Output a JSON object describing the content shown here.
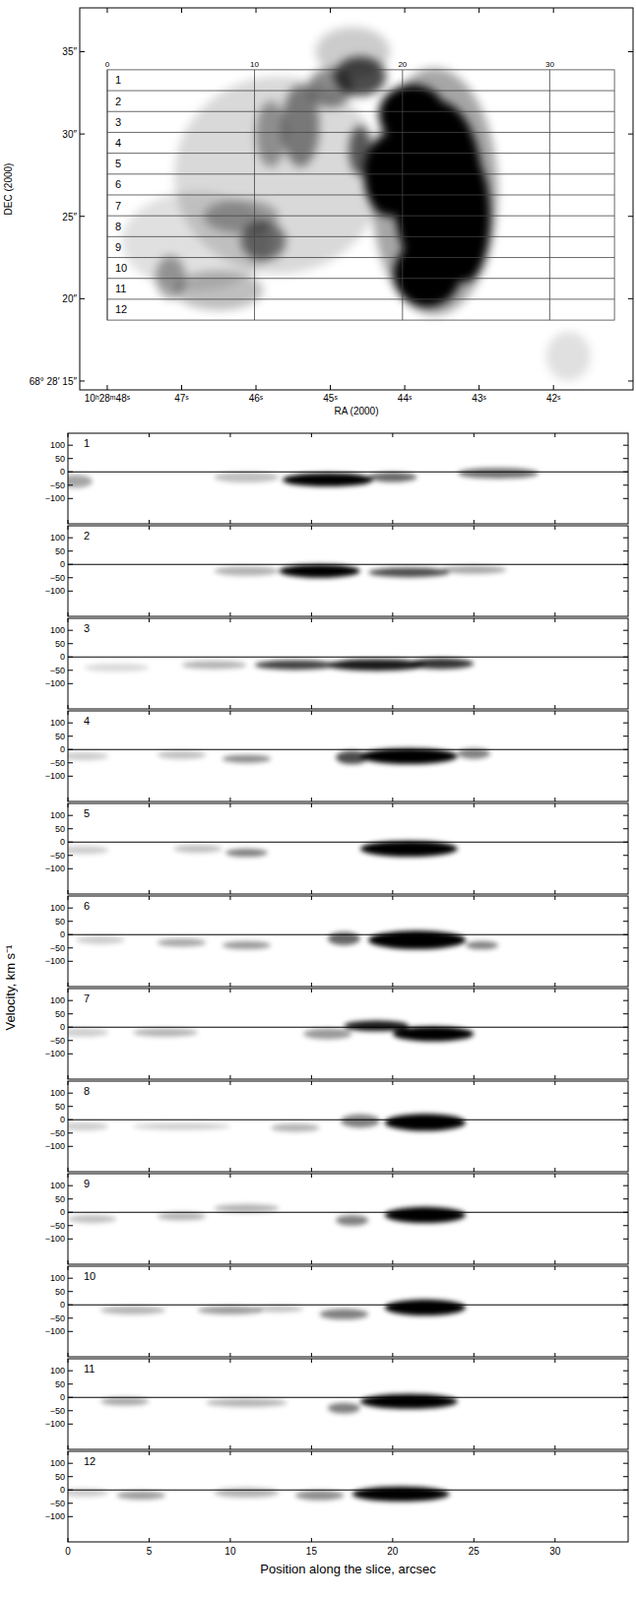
{
  "chart_data": [
    {
      "type": "image",
      "xlabel": "RA (2000)",
      "ylabel": "DEC (2000)",
      "xlim": [
        48.37,
        40.93
      ],
      "ylim": [
        14.46,
        37.66
      ],
      "xticks": [
        {
          "value": 48,
          "label": "10ʰ28ᵐ48ˢ"
        },
        {
          "value": 47,
          "label": "47ˢ"
        },
        {
          "value": 46,
          "label": "46ˢ"
        },
        {
          "value": 45,
          "label": "45ˢ"
        },
        {
          "value": 44,
          "label": "44ˢ"
        },
        {
          "value": 43,
          "label": "43ˢ"
        },
        {
          "value": 42,
          "label": "42ˢ"
        }
      ],
      "yticks": [
        {
          "value": 15,
          "label": "68° 28′ 15″"
        },
        {
          "value": 20,
          "label": "20″"
        },
        {
          "value": 25,
          "label": "25″"
        },
        {
          "value": 30,
          "label": "30″"
        },
        {
          "value": 35,
          "label": "35″"
        }
      ],
      "components": [
        {
          "ra": 45.7,
          "dec": 27.5,
          "sra": 1.4,
          "sdec": 6,
          "level": 0.15
        },
        {
          "ra": 46.8,
          "dec": 23.5,
          "sra": 1.0,
          "sdec": 3,
          "level": 0.12
        },
        {
          "ra": 43.6,
          "dec": 26.5,
          "sra": 0.85,
          "sdec": 7.5,
          "level": 0.35
        },
        {
          "ra": 43.55,
          "dec": 26.5,
          "sra": 0.6,
          "sdec": 5.5,
          "level": 1
        },
        {
          "ra": 43.9,
          "dec": 31.2,
          "sra": 0.45,
          "sdec": 1.8,
          "level": 1
        },
        {
          "ra": 44.2,
          "dec": 27.5,
          "sra": 0.35,
          "sdec": 2.5,
          "level": 1
        },
        {
          "ra": 43.7,
          "dec": 21.5,
          "sra": 0.45,
          "sdec": 2,
          "level": 1
        },
        {
          "ra": 43.2,
          "dec": 25,
          "sra": 0.35,
          "sdec": 4,
          "level": 1
        },
        {
          "ra": 44.6,
          "dec": 33.5,
          "sra": 0.35,
          "sdec": 1.2,
          "level": 0.7
        },
        {
          "ra": 45.0,
          "dec": 32.8,
          "sra": 0.3,
          "sdec": 1.2,
          "level": 0.45
        },
        {
          "ra": 44.7,
          "dec": 35,
          "sra": 0.5,
          "sdec": 1.5,
          "level": 0.2
        },
        {
          "ra": 45.4,
          "dec": 30.5,
          "sra": 0.25,
          "sdec": 2.5,
          "level": 0.45
        },
        {
          "ra": 45.8,
          "dec": 30,
          "sra": 0.2,
          "sdec": 2,
          "level": 0.35
        },
        {
          "ra": 44.6,
          "dec": 29.0,
          "sra": 0.15,
          "sdec": 1.5,
          "level": 0.6
        },
        {
          "ra": 45.9,
          "dec": 23.5,
          "sra": 0.3,
          "sdec": 1.2,
          "level": 0.5
        },
        {
          "ra": 46.2,
          "dec": 25.0,
          "sra": 0.5,
          "sdec": 1.0,
          "level": 0.3
        },
        {
          "ra": 47.15,
          "dec": 21.3,
          "sra": 0.2,
          "sdec": 1.3,
          "level": 0.35
        },
        {
          "ra": 46.5,
          "dec": 20.5,
          "sra": 0.6,
          "sdec": 1.2,
          "level": 0.25
        },
        {
          "ra": 41.8,
          "dec": 16.5,
          "sra": 0.3,
          "sdec": 1.5,
          "level": 0.12
        }
      ],
      "slit_grid": {
        "ra_start": 48.0,
        "ra_end": 41.18,
        "dec_top": 33.9,
        "dec_bottom": 18.7,
        "slices": [
          1,
          2,
          3,
          4,
          5,
          6,
          7,
          8,
          9,
          10,
          11,
          12
        ],
        "scale": [
          {
            "value": 48.0,
            "label": "0"
          },
          {
            "value": 46.02,
            "label": "10"
          },
          {
            "value": 44.03,
            "label": "20"
          },
          {
            "value": 42.05,
            "label": "30"
          }
        ]
      }
    },
    {
      "type": "position-velocity",
      "xlabel": "Position along the slice, arcsec",
      "ylabel": "Velocity, km s⁻¹",
      "xlim": [
        0,
        34.5
      ],
      "ylim": [
        -195,
        145
      ],
      "xticks": [
        0,
        5,
        10,
        15,
        20,
        25,
        30
      ],
      "yticks": [
        100,
        50,
        0,
        {
          "value": -50,
          "label": "−50"
        },
        {
          "value": -100,
          "label": "−100"
        }
      ],
      "reference_lines": [
        0
      ],
      "panels": [
        {
          "title": "1",
          "components": [
            {
              "x": 16,
              "v": -30,
              "sx": 2.8,
              "sv": 25,
              "level": 1
            },
            {
              "x": 20,
              "v": -20,
              "sx": 1.5,
              "sv": 18,
              "level": 0.6
            },
            {
              "x": 26.5,
              "v": -5,
              "sx": 2.5,
              "sv": 20,
              "level": 0.55
            },
            {
              "x": 0.5,
              "v": -35,
              "sx": 1,
              "sv": 25,
              "level": 0.35
            },
            {
              "x": 11,
              "v": -20,
              "sx": 2,
              "sv": 20,
              "level": 0.25
            }
          ]
        },
        {
          "title": "2",
          "components": [
            {
              "x": 15.5,
              "v": -25,
              "sx": 2.5,
              "sv": 25,
              "level": 1
            },
            {
              "x": 21,
              "v": -30,
              "sx": 2.5,
              "sv": 18,
              "level": 0.7
            },
            {
              "x": 25,
              "v": -20,
              "sx": 2,
              "sv": 15,
              "level": 0.35
            },
            {
              "x": 11,
              "v": -25,
              "sx": 2,
              "sv": 18,
              "level": 0.3
            }
          ]
        },
        {
          "title": "3",
          "components": [
            {
              "x": 14,
              "v": -30,
              "sx": 2.5,
              "sv": 18,
              "level": 0.75
            },
            {
              "x": 19,
              "v": -30,
              "sx": 3,
              "sv": 22,
              "level": 0.9
            },
            {
              "x": 23,
              "v": -25,
              "sx": 2,
              "sv": 20,
              "level": 0.8
            },
            {
              "x": 9,
              "v": -30,
              "sx": 2,
              "sv": 15,
              "level": 0.3
            },
            {
              "x": 3,
              "v": -40,
              "sx": 2,
              "sv": 15,
              "level": 0.15
            }
          ]
        },
        {
          "title": "4",
          "components": [
            {
              "x": 21,
              "v": -25,
              "sx": 3,
              "sv": 30,
              "level": 1
            },
            {
              "x": 17.5,
              "v": -30,
              "sx": 1,
              "sv": 25,
              "level": 0.7
            },
            {
              "x": 11,
              "v": -35,
              "sx": 1.5,
              "sv": 15,
              "level": 0.45
            },
            {
              "x": 7,
              "v": -20,
              "sx": 1.5,
              "sv": 15,
              "level": 0.25
            },
            {
              "x": 1,
              "v": -25,
              "sx": 1.5,
              "sv": 15,
              "level": 0.2
            },
            {
              "x": 25,
              "v": -15,
              "sx": 1,
              "sv": 20,
              "level": 0.5
            }
          ]
        },
        {
          "title": "5",
          "components": [
            {
              "x": 21,
              "v": -25,
              "sx": 3,
              "sv": 30,
              "level": 1
            },
            {
              "x": 11,
              "v": -40,
              "sx": 1.3,
              "sv": 15,
              "level": 0.5
            },
            {
              "x": 8,
              "v": -25,
              "sx": 1.5,
              "sv": 15,
              "level": 0.25
            },
            {
              "x": 1,
              "v": -30,
              "sx": 1.5,
              "sv": 15,
              "level": 0.2
            }
          ]
        },
        {
          "title": "6",
          "components": [
            {
              "x": 21.5,
              "v": -20,
              "sx": 3,
              "sv": 35,
              "level": 1
            },
            {
              "x": 17,
              "v": -15,
              "sx": 1,
              "sv": 25,
              "level": 0.6
            },
            {
              "x": 11,
              "v": -40,
              "sx": 1.5,
              "sv": 15,
              "level": 0.4
            },
            {
              "x": 7,
              "v": -30,
              "sx": 1.5,
              "sv": 15,
              "level": 0.35
            },
            {
              "x": 2,
              "v": -20,
              "sx": 1.5,
              "sv": 15,
              "level": 0.2
            },
            {
              "x": 25.5,
              "v": -40,
              "sx": 1,
              "sv": 15,
              "level": 0.5
            }
          ]
        },
        {
          "title": "7",
          "components": [
            {
              "x": 19,
              "v": 5,
              "sx": 2,
              "sv": 20,
              "level": 0.9
            },
            {
              "x": 22.5,
              "v": -25,
              "sx": 2.5,
              "sv": 28,
              "level": 1
            },
            {
              "x": 16,
              "v": -25,
              "sx": 1.5,
              "sv": 20,
              "level": 0.4
            },
            {
              "x": 6,
              "v": -20,
              "sx": 2,
              "sv": 15,
              "level": 0.3
            },
            {
              "x": 1,
              "v": -20,
              "sx": 1.5,
              "sv": 15,
              "level": 0.2
            }
          ]
        },
        {
          "title": "8",
          "components": [
            {
              "x": 22,
              "v": -10,
              "sx": 2.5,
              "sv": 32,
              "level": 1
            },
            {
              "x": 18,
              "v": -5,
              "sx": 1.2,
              "sv": 25,
              "level": 0.5
            },
            {
              "x": 14,
              "v": -30,
              "sx": 1.5,
              "sv": 15,
              "level": 0.3
            },
            {
              "x": 7,
              "v": -25,
              "sx": 3,
              "sv": 12,
              "level": 0.2
            },
            {
              "x": 1,
              "v": -25,
              "sx": 1.5,
              "sv": 15,
              "level": 0.2
            }
          ]
        },
        {
          "title": "9",
          "components": [
            {
              "x": 22,
              "v": -10,
              "sx": 2.5,
              "sv": 30,
              "level": 1
            },
            {
              "x": 17.5,
              "v": -30,
              "sx": 1,
              "sv": 20,
              "level": 0.5
            },
            {
              "x": 11,
              "v": 15,
              "sx": 2,
              "sv": 15,
              "level": 0.3
            },
            {
              "x": 7,
              "v": -15,
              "sx": 1.5,
              "sv": 15,
              "level": 0.3
            },
            {
              "x": 1.5,
              "v": -25,
              "sx": 1.5,
              "sv": 15,
              "level": 0.25
            }
          ]
        },
        {
          "title": "10",
          "components": [
            {
              "x": 22,
              "v": -10,
              "sx": 2.5,
              "sv": 30,
              "level": 1
            },
            {
              "x": 17,
              "v": -35,
              "sx": 1.5,
              "sv": 20,
              "level": 0.5
            },
            {
              "x": 10,
              "v": -20,
              "sx": 2,
              "sv": 15,
              "level": 0.4
            },
            {
              "x": 4,
              "v": -20,
              "sx": 2,
              "sv": 15,
              "level": 0.3
            },
            {
              "x": 13,
              "v": -15,
              "sx": 1.5,
              "sv": 12,
              "level": 0.25
            }
          ]
        },
        {
          "title": "11",
          "components": [
            {
              "x": 21,
              "v": -15,
              "sx": 3,
              "sv": 28,
              "level": 1
            },
            {
              "x": 17,
              "v": -40,
              "sx": 1,
              "sv": 20,
              "level": 0.5
            },
            {
              "x": 11,
              "v": -20,
              "sx": 2.5,
              "sv": 15,
              "level": 0.3
            },
            {
              "x": 3.5,
              "v": -15,
              "sx": 1.5,
              "sv": 15,
              "level": 0.35
            }
          ]
        },
        {
          "title": "12",
          "components": [
            {
              "x": 20.5,
              "v": -15,
              "sx": 3,
              "sv": 28,
              "level": 1
            },
            {
              "x": 15.5,
              "v": -20,
              "sx": 1.5,
              "sv": 18,
              "level": 0.45
            },
            {
              "x": 11,
              "v": -10,
              "sx": 2,
              "sv": 18,
              "level": 0.3
            },
            {
              "x": 4.5,
              "v": -20,
              "sx": 1.5,
              "sv": 15,
              "level": 0.4
            },
            {
              "x": 1,
              "v": -10,
              "sx": 1.5,
              "sv": 15,
              "level": 0.2
            }
          ]
        }
      ]
    }
  ]
}
